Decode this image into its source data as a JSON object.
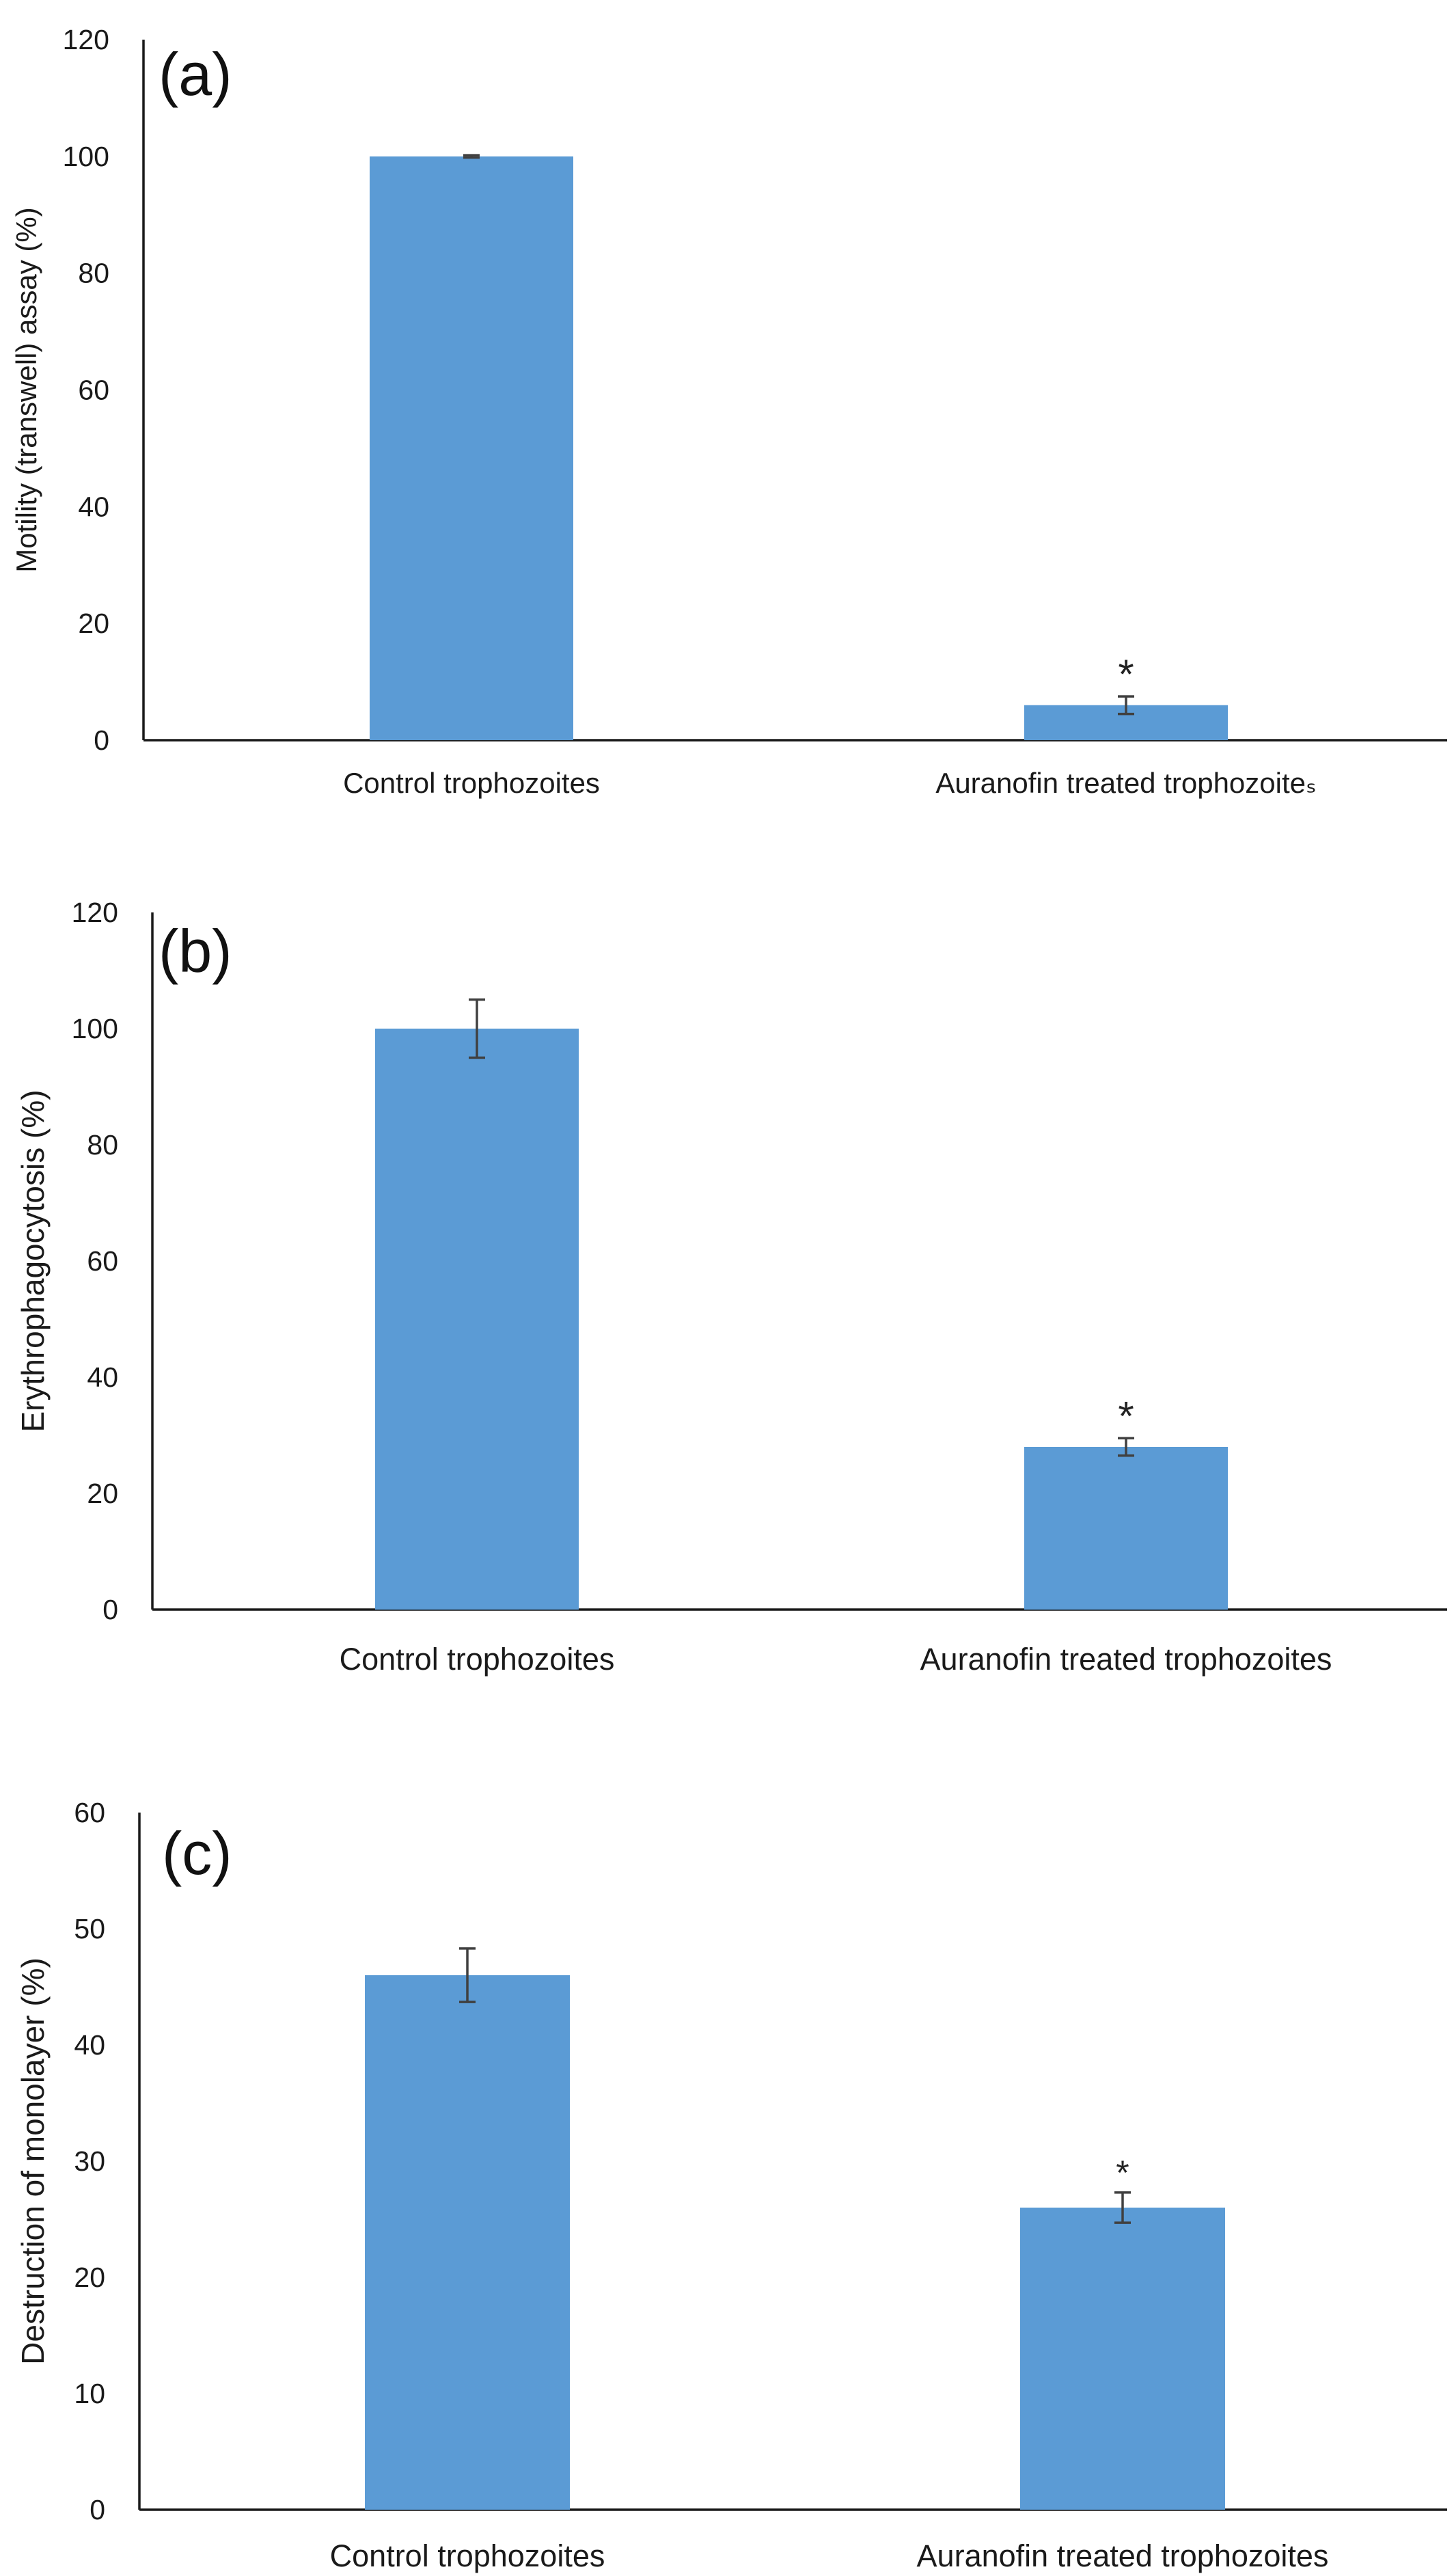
{
  "colors": {
    "bar": "#5b9bd5",
    "axis": "#1a1a1a",
    "error_bar": "#404040"
  },
  "chart_data": [
    {
      "type": "bar",
      "panel_label": "(a)",
      "categories": [
        "Control trophozoites",
        "Auranofin treated trophozoites"
      ],
      "category_labels": [
        "Control trophozoites",
        "Auranofin treated trophozoiteₛ"
      ],
      "values": [
        100,
        6
      ],
      "errors": [
        0.2,
        1.5
      ],
      "significance": [
        "",
        "*"
      ],
      "ylabel": "Motility (transwell) assay (%)",
      "ylim": [
        0,
        120
      ],
      "yticks": [
        0,
        20,
        40,
        60,
        80,
        100,
        120
      ],
      "grid": false
    },
    {
      "type": "bar",
      "panel_label": "(b)",
      "categories": [
        "Control trophozoites",
        "Auranofin treated trophozoites"
      ],
      "category_labels": [
        "Control trophozoites",
        "Auranofin treated trophozoites"
      ],
      "values": [
        100,
        28
      ],
      "errors": [
        5,
        1.5
      ],
      "significance": [
        "",
        "*"
      ],
      "ylabel": "Erythrophagocytosis (%)",
      "ylim": [
        0,
        120
      ],
      "yticks": [
        0,
        20,
        40,
        60,
        80,
        100,
        120
      ],
      "grid": false
    },
    {
      "type": "bar",
      "panel_label": "(c)",
      "categories": [
        "Control trophozoites",
        "Auranofin treated trophozoites"
      ],
      "category_labels": [
        "Control trophozoites",
        "Auranofin treated trophozoites"
      ],
      "values": [
        46,
        26
      ],
      "errors": [
        2.3,
        1.3
      ],
      "significance": [
        "",
        "*"
      ],
      "ylabel": "Destruction of monolayer (%)",
      "ylim": [
        0,
        60
      ],
      "yticks": [
        0,
        10,
        20,
        30,
        40,
        50,
        60
      ],
      "grid": false
    }
  ]
}
